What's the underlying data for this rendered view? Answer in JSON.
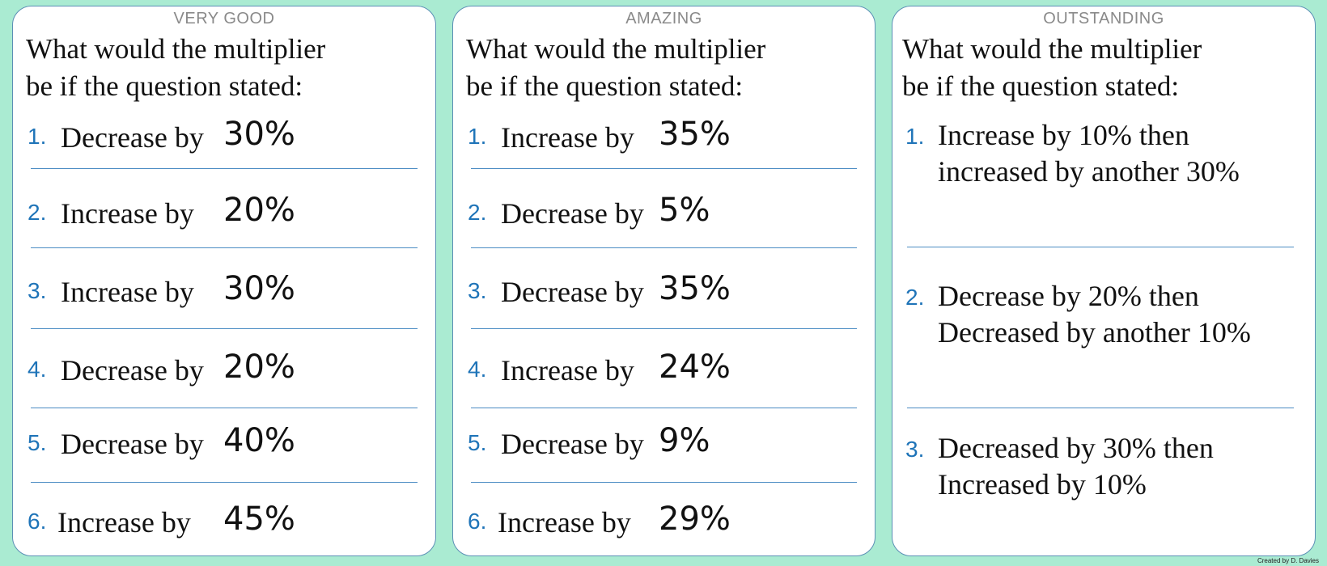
{
  "intro_lines": [
    "What would the multiplier",
    "be if the question stated:"
  ],
  "cards": [
    {
      "label": "VERY GOOD",
      "questions": [
        {
          "num": "1.",
          "text": "Decrease by",
          "pct": "30%"
        },
        {
          "num": "2.",
          "text": "Increase by",
          "pct": "20%"
        },
        {
          "num": "3.",
          "text": "Increase by",
          "pct": "30%"
        },
        {
          "num": "4.",
          "text": "Decrease by",
          "pct": "20%"
        },
        {
          "num": "5.",
          "text": "Decrease by",
          "pct": "40%"
        },
        {
          "num": "6.",
          "text": "Increase by",
          "pct": "45%"
        }
      ]
    },
    {
      "label": "AMAZING",
      "questions": [
        {
          "num": "1.",
          "text": "Increase by",
          "pct": "35%"
        },
        {
          "num": "2.",
          "text": "Decrease by",
          "pct": "5%"
        },
        {
          "num": "3.",
          "text": "Decrease by",
          "pct": "35%"
        },
        {
          "num": "4.",
          "text": "Increase by",
          "pct": "24%"
        },
        {
          "num": "5.",
          "text": "Decrease by",
          "pct": "9%"
        },
        {
          "num": "6.",
          "text": "Increase by",
          "pct": "29%"
        }
      ]
    },
    {
      "label": "OUTSTANDING",
      "questions": [
        {
          "num": "1.",
          "line1": "Increase by 10% then",
          "line2": "increased by another 30%"
        },
        {
          "num": "2.",
          "line1": "Decrease by 20% then",
          "line2": "Decreased by another 10%"
        },
        {
          "num": "3.",
          "line1": "Decreased by 30% then",
          "line2": "Increased by 10%"
        }
      ]
    }
  ],
  "credit": "Created by D. Davies",
  "colors": {
    "background": "#aaebd2",
    "card_border": "#5b8fb5",
    "number_blue": "#1f74b8",
    "rule_blue": "#4b8cc3",
    "label_grey": "#8a8a8a"
  }
}
